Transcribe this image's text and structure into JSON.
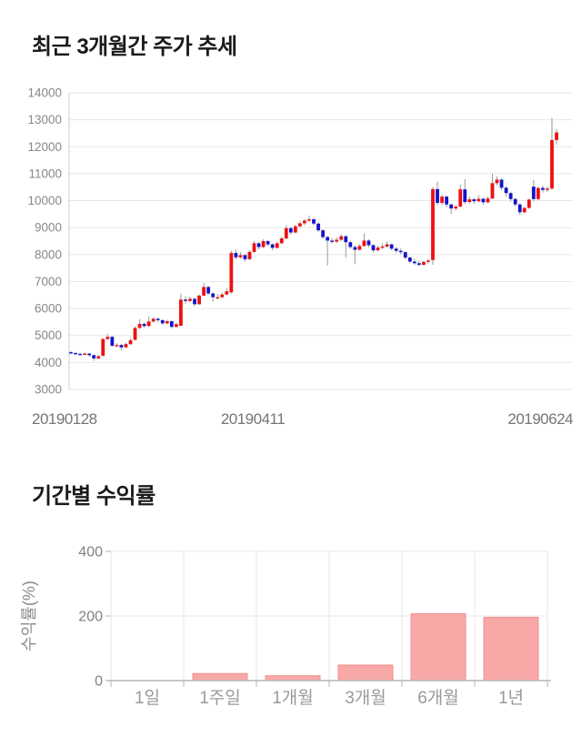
{
  "price_chart": {
    "title": "최근 3개월간 주가 추세"
  },
  "returns_chart": {
    "title": "기간별 수익률"
  },
  "chart_data": [
    {
      "type": "candlestick",
      "title": "최근 3개월간 주가 추세",
      "xlabel": "",
      "ylabel": "",
      "x_tick_labels": [
        "20190128",
        "20190411",
        "20190624"
      ],
      "y_ticks": [
        3000,
        4000,
        5000,
        6000,
        7000,
        8000,
        9000,
        10000,
        11000,
        12000,
        13000,
        14000
      ],
      "ylim": [
        3000,
        14000
      ],
      "grid": "horizontal",
      "colors": {
        "up": "#ee1111",
        "down": "#1414cc",
        "wick": "#999999",
        "grid": "#e7e7e7",
        "axis": "#cccccc",
        "tick_text": "#888888",
        "date_text": "#757575"
      },
      "ohlc_note": "values are [open,high,low,close], estimated from pixels",
      "ohlc": [
        [
          4380,
          4420,
          4330,
          4350
        ],
        [
          4350,
          4390,
          4290,
          4320
        ],
        [
          4320,
          4360,
          4270,
          4300
        ],
        [
          4300,
          4370,
          4280,
          4330
        ],
        [
          4330,
          4350,
          4210,
          4270
        ],
        [
          4270,
          4290,
          4060,
          4150
        ],
        [
          4150,
          4280,
          4120,
          4230
        ],
        [
          4250,
          4900,
          4230,
          4870
        ],
        [
          4870,
          5060,
          4830,
          4950
        ],
        [
          4950,
          4980,
          4580,
          4620
        ],
        [
          4620,
          4720,
          4560,
          4650
        ],
        [
          4650,
          4680,
          4450,
          4560
        ],
        [
          4560,
          4730,
          4540,
          4680
        ],
        [
          4680,
          4890,
          4650,
          4820
        ],
        [
          4840,
          5340,
          4820,
          5280
        ],
        [
          5280,
          5610,
          5240,
          5430
        ],
        [
          5430,
          5480,
          5290,
          5350
        ],
        [
          5350,
          5700,
          5330,
          5520
        ],
        [
          5520,
          5680,
          5470,
          5620
        ],
        [
          5620,
          5660,
          5500,
          5570
        ],
        [
          5570,
          5590,
          5400,
          5450
        ],
        [
          5450,
          5580,
          5420,
          5530
        ],
        [
          5530,
          5550,
          5260,
          5320
        ],
        [
          5320,
          5470,
          5290,
          5420
        ],
        [
          5360,
          6550,
          5350,
          6330
        ],
        [
          6330,
          6450,
          6180,
          6280
        ],
        [
          6280,
          6440,
          6230,
          6360
        ],
        [
          6360,
          6400,
          6080,
          6160
        ],
        [
          6160,
          6520,
          6140,
          6480
        ],
        [
          6480,
          6950,
          6460,
          6800
        ],
        [
          6800,
          6840,
          6500,
          6560
        ],
        [
          6560,
          6600,
          6250,
          6420
        ],
        [
          6420,
          6540,
          6330,
          6420
        ],
        [
          6420,
          6590,
          6380,
          6520
        ],
        [
          6520,
          6760,
          6490,
          6640
        ],
        [
          6600,
          8150,
          6550,
          8060
        ],
        [
          8060,
          8180,
          7820,
          7900
        ],
        [
          7900,
          8090,
          7850,
          7980
        ],
        [
          7980,
          8010,
          7740,
          7830
        ],
        [
          7830,
          8160,
          7800,
          8100
        ],
        [
          8100,
          8500,
          8070,
          8420
        ],
        [
          8420,
          8470,
          8190,
          8280
        ],
        [
          8280,
          8570,
          8250,
          8500
        ],
        [
          8500,
          8540,
          8310,
          8380
        ],
        [
          8380,
          8420,
          8160,
          8250
        ],
        [
          8250,
          8480,
          8220,
          8420
        ],
        [
          8420,
          8680,
          8390,
          8600
        ],
        [
          8600,
          9100,
          8570,
          8980
        ],
        [
          8980,
          9030,
          8740,
          8820
        ],
        [
          8820,
          9110,
          8790,
          9050
        ],
        [
          9050,
          9230,
          9000,
          9160
        ],
        [
          9160,
          9330,
          9090,
          9260
        ],
        [
          9260,
          9450,
          9200,
          9310
        ],
        [
          9310,
          9360,
          9080,
          9150
        ],
        [
          9150,
          9190,
          8830,
          8900
        ],
        [
          8900,
          8940,
          8590,
          8650
        ],
        [
          8650,
          8700,
          7600,
          8520
        ],
        [
          8520,
          8610,
          8410,
          8480
        ],
        [
          8480,
          8640,
          8430,
          8550
        ],
        [
          8550,
          8760,
          8510,
          8680
        ],
        [
          8680,
          8710,
          7900,
          8460
        ],
        [
          8460,
          8520,
          8210,
          8280
        ],
        [
          8280,
          8350,
          7650,
          8180
        ],
        [
          8180,
          8390,
          8140,
          8320
        ],
        [
          8320,
          8790,
          8290,
          8520
        ],
        [
          8520,
          8570,
          8280,
          8350
        ],
        [
          8350,
          8390,
          8080,
          8160
        ],
        [
          8160,
          8330,
          8110,
          8260
        ],
        [
          8260,
          8420,
          8200,
          8300
        ],
        [
          8300,
          8480,
          8260,
          8380
        ],
        [
          8380,
          8410,
          8160,
          8220
        ],
        [
          8220,
          8280,
          8070,
          8140
        ],
        [
          8140,
          8230,
          8010,
          8090
        ],
        [
          8090,
          8120,
          7820,
          7890
        ],
        [
          7890,
          7930,
          7680,
          7740
        ],
        [
          7740,
          7850,
          7610,
          7680
        ],
        [
          7680,
          7770,
          7560,
          7620
        ],
        [
          7620,
          7780,
          7590,
          7730
        ],
        [
          7730,
          7840,
          7670,
          7780
        ],
        [
          7800,
          10500,
          7620,
          10430
        ],
        [
          10430,
          10700,
          9820,
          9920
        ],
        [
          9920,
          10220,
          9840,
          10150
        ],
        [
          10150,
          10190,
          9760,
          9860
        ],
        [
          9860,
          9900,
          9500,
          9710
        ],
        [
          9710,
          9840,
          9630,
          9780
        ],
        [
          9780,
          10600,
          9750,
          10420
        ],
        [
          10420,
          10800,
          9870,
          9950
        ],
        [
          9950,
          10160,
          9890,
          10050
        ],
        [
          10050,
          10100,
          9870,
          9980
        ],
        [
          9980,
          10210,
          9930,
          10070
        ],
        [
          10070,
          10110,
          9840,
          9940
        ],
        [
          9940,
          10150,
          9900,
          10080
        ],
        [
          10080,
          11000,
          10050,
          10650
        ],
        [
          10650,
          10900,
          10570,
          10780
        ],
        [
          10780,
          10820,
          10380,
          10480
        ],
        [
          10480,
          10540,
          10150,
          10280
        ],
        [
          10280,
          10330,
          9960,
          10060
        ],
        [
          10060,
          10110,
          9780,
          9860
        ],
        [
          9860,
          9900,
          9480,
          9570
        ],
        [
          9570,
          9780,
          9540,
          9730
        ],
        [
          9730,
          10080,
          9700,
          10040
        ],
        [
          10520,
          10770,
          9980,
          10060
        ],
        [
          10060,
          10520,
          10020,
          10470
        ],
        [
          10470,
          10560,
          10300,
          10400
        ],
        [
          10400,
          10520,
          10330,
          10450
        ],
        [
          10450,
          13070,
          10400,
          12250
        ],
        [
          12250,
          12650,
          12080,
          12530
        ]
      ]
    },
    {
      "type": "bar",
      "title": "기간별 수익률",
      "xlabel": "",
      "ylabel": "수익률(%)",
      "categories": [
        "1일",
        "1주일",
        "1개월",
        "3개월",
        "6개월",
        "1년"
      ],
      "values": [
        0,
        22,
        15,
        48,
        207,
        196
      ],
      "y_ticks": [
        0,
        200,
        400
      ],
      "ylim": [
        0,
        400
      ],
      "grid": "both",
      "legend": "none",
      "colors": {
        "bar_fill": "#f9a8a8",
        "bar_border": "#ef9191",
        "grid": "#e7e7e7",
        "axis": "#b5b5b5",
        "tick_text": "#808080",
        "category_text": "#999999",
        "ylabel_text": "#8c8c8c"
      }
    }
  ]
}
